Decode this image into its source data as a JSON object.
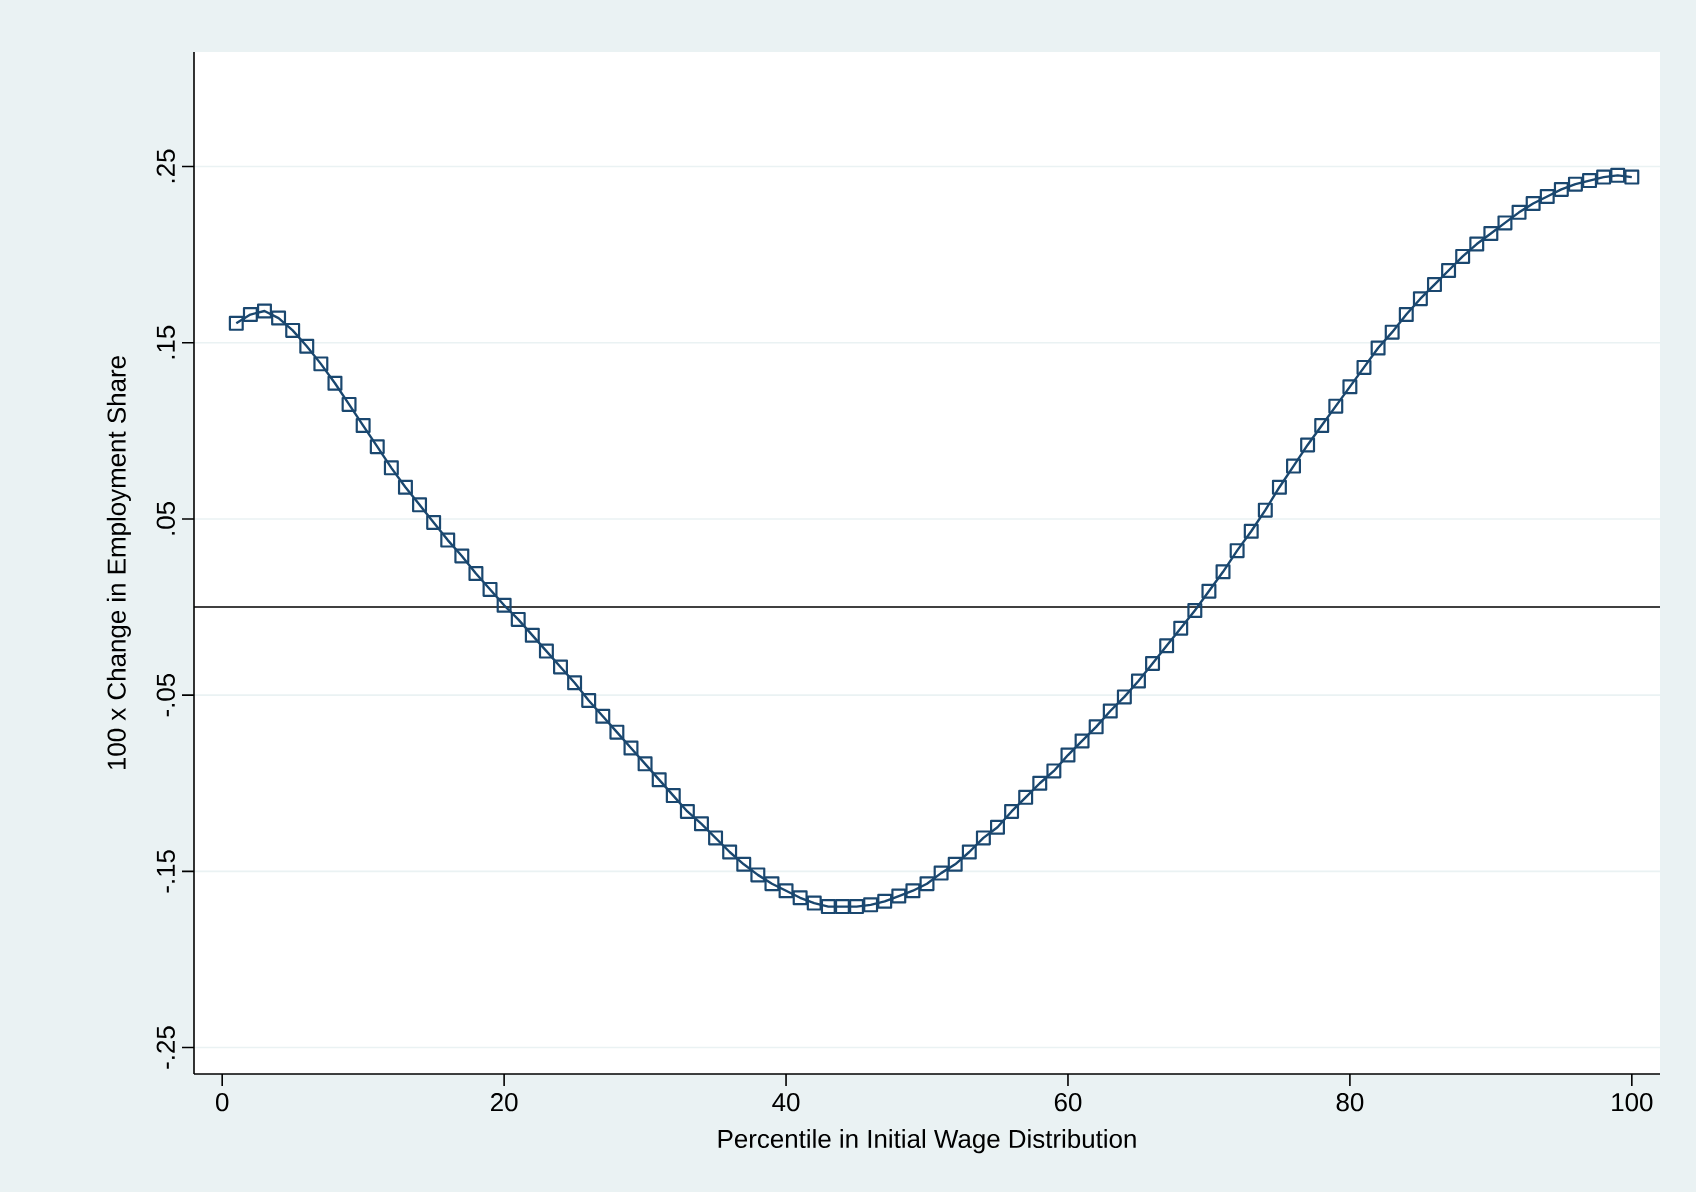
{
  "chart_data": {
    "type": "line",
    "xlabel": "Percentile in Initial Wage Distribution",
    "ylabel": "100 x Change in Employment Share",
    "x": [
      1,
      2,
      3,
      4,
      5,
      6,
      7,
      8,
      9,
      10,
      11,
      12,
      13,
      14,
      15,
      16,
      17,
      18,
      19,
      20,
      21,
      22,
      23,
      24,
      25,
      26,
      27,
      28,
      29,
      30,
      31,
      32,
      33,
      34,
      35,
      36,
      37,
      38,
      39,
      40,
      41,
      42,
      43,
      44,
      45,
      46,
      47,
      48,
      49,
      50,
      51,
      52,
      53,
      54,
      55,
      56,
      57,
      58,
      59,
      60,
      61,
      62,
      63,
      64,
      65,
      66,
      67,
      68,
      69,
      70,
      71,
      72,
      73,
      74,
      75,
      76,
      77,
      78,
      79,
      80,
      81,
      82,
      83,
      84,
      85,
      86,
      87,
      88,
      89,
      90,
      91,
      92,
      93,
      94,
      95,
      96,
      97,
      98,
      99,
      100
    ],
    "series": [
      {
        "color": "#1a476f",
        "values": [
          0.161,
          0.166,
          0.168,
          0.164,
          0.157,
          0.148,
          0.138,
          0.127,
          0.115,
          0.103,
          0.091,
          0.079,
          0.068,
          0.058,
          0.048,
          0.038,
          0.029,
          0.019,
          0.01,
          0.001,
          -0.007,
          -0.016,
          -0.025,
          -0.034,
          -0.043,
          -0.053,
          -0.062,
          -0.071,
          -0.08,
          -0.089,
          -0.098,
          -0.107,
          -0.116,
          -0.123,
          -0.131,
          -0.139,
          -0.146,
          -0.152,
          -0.157,
          -0.161,
          -0.165,
          -0.168,
          -0.17,
          -0.17,
          -0.17,
          -0.169,
          -0.167,
          -0.164,
          -0.161,
          -0.157,
          -0.151,
          -0.146,
          -0.139,
          -0.131,
          -0.125,
          -0.116,
          -0.108,
          -0.1,
          -0.093,
          -0.084,
          -0.076,
          -0.068,
          -0.059,
          -0.051,
          -0.042,
          -0.032,
          -0.022,
          -0.012,
          -0.002,
          0.009,
          0.02,
          0.032,
          0.043,
          0.055,
          0.068,
          0.08,
          0.092,
          0.103,
          0.114,
          0.125,
          0.136,
          0.147,
          0.156,
          0.166,
          0.175,
          0.183,
          0.191,
          0.199,
          0.206,
          0.212,
          0.218,
          0.224,
          0.229,
          0.233,
          0.237,
          0.24,
          0.242,
          0.244,
          0.245,
          0.244
        ]
      }
    ],
    "xlim": [
      -2,
      102
    ],
    "ylim": [
      -0.265,
      0.315
    ],
    "xticks": [
      0,
      20,
      40,
      60,
      80,
      100
    ],
    "yticks": [
      {
        "value": -0.25,
        "label": "-.25"
      },
      {
        "value": -0.15,
        "label": "-.15"
      },
      {
        "value": -0.05,
        "label": "-.05"
      },
      {
        "value": 0.05,
        "label": ".05"
      },
      {
        "value": 0.15,
        "label": ".15"
      },
      {
        "value": 0.25,
        "label": ".25"
      }
    ],
    "grid": "y",
    "marker": "square",
    "ref_lines": [
      {
        "axis": "y",
        "value": 0,
        "color": "#000000"
      }
    ]
  }
}
